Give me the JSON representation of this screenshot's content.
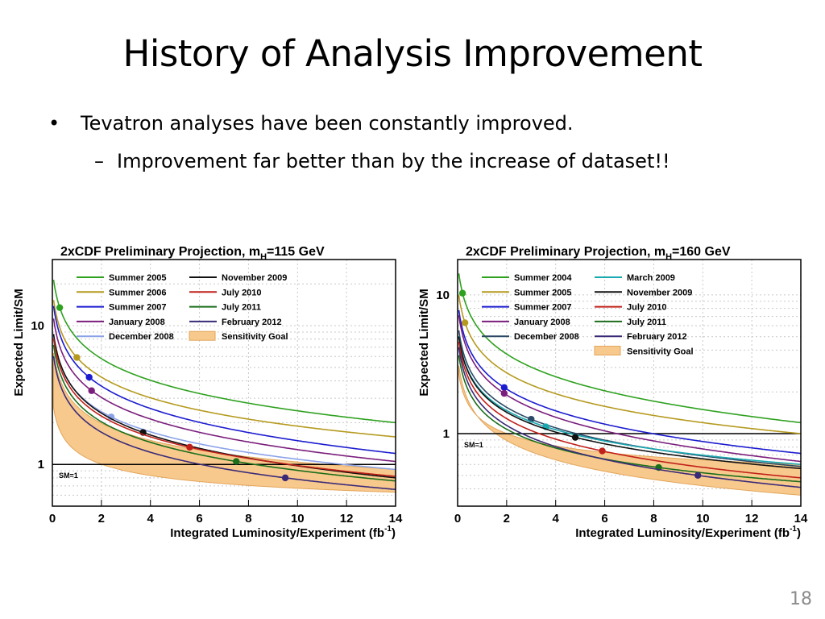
{
  "slide": {
    "title": "History of Analysis Improvement",
    "bullets": [
      {
        "mark": "•",
        "text": "Tevatron analyses have been constantly improved."
      },
      {
        "mark": "–",
        "text": "Improvement far better than by the increase of dataset!!"
      }
    ],
    "page_number": "18"
  },
  "chart_data": [
    {
      "type": "line",
      "title_pre": "2xCDF Preliminary Projection, m",
      "title_sub": "H",
      "title_post": "=115 GeV",
      "xlabel": "Integrated Luminosity/Experiment (fb",
      "xlabel_sup": "-1",
      "xlabel_end": ")",
      "ylabel": "Expected Limit/SM",
      "yscale": "log",
      "xlim": [
        0,
        14
      ],
      "ylim": [
        0.5,
        30
      ],
      "xticks": [
        "0",
        "2",
        "4",
        "6",
        "8",
        "10",
        "12",
        "14"
      ],
      "yticks": [
        {
          "v": 1,
          "label": "1"
        },
        {
          "v": 10,
          "label": "10"
        }
      ],
      "reference_line": {
        "value": 1,
        "label": "SM=1"
      },
      "legend": [
        {
          "name": "Summer 2005",
          "color": "#2ea11f"
        },
        {
          "name": "Summer 2006",
          "color": "#b59a1e"
        },
        {
          "name": "Summer 2007",
          "color": "#1b1bd0"
        },
        {
          "name": "January 2008",
          "color": "#7a1d7c"
        },
        {
          "name": "December 2008",
          "color": "#8aa2e8"
        },
        {
          "name": "November 2009",
          "color": "#111111"
        },
        {
          "name": "July 2010",
          "color": "#c0201a"
        },
        {
          "name": "July 2011",
          "color": "#1b6e1b"
        },
        {
          "name": "February 2012",
          "color": "#3a2a78"
        },
        {
          "name": "Sensitivity Goal",
          "color": "#f8c98d",
          "band": true
        }
      ],
      "series": [
        {
          "name": "Summer 2005",
          "color": "#2ea11f",
          "point": [
            0.3,
            13.5
          ],
          "at14": 2.0
        },
        {
          "name": "Summer 2006",
          "color": "#b59a1e",
          "point": [
            1.0,
            5.9
          ],
          "at14": 1.58
        },
        {
          "name": "Summer 2007",
          "color": "#1b1bd0",
          "point": [
            1.5,
            4.25
          ],
          "at14": 1.2
        },
        {
          "name": "January 2008",
          "color": "#7a1d7c",
          "point": [
            1.6,
            3.4
          ],
          "at14": 1.05
        },
        {
          "name": "December 2008",
          "color": "#8aa2e8",
          "point": [
            2.4,
            2.2
          ],
          "at14": 0.92
        },
        {
          "name": "November 2009",
          "color": "#111111",
          "point": [
            3.7,
            1.7
          ],
          "at14": 0.8
        },
        {
          "name": "July 2010",
          "color": "#c0201a",
          "point": [
            5.6,
            1.33
          ],
          "at14": 0.82
        },
        {
          "name": "July 2011",
          "color": "#1b6e1b",
          "point": [
            7.5,
            1.05
          ],
          "at14": 0.76
        },
        {
          "name": "February 2012",
          "color": "#3a2a78",
          "point": [
            9.5,
            0.8
          ],
          "at14": 0.66
        }
      ],
      "band": {
        "upper_at14": 0.92,
        "lower_at14": 0.63
      }
    },
    {
      "type": "line",
      "title_pre": "2xCDF Preliminary Projection, m",
      "title_sub": "H",
      "title_post": "=160 GeV",
      "xlabel": "Integrated Luminosity/Experiment (fb",
      "xlabel_sup": "-1",
      "xlabel_end": ")",
      "ylabel": "Expected Limit/SM",
      "yscale": "log",
      "xlim": [
        0,
        14
      ],
      "ylim": [
        0.3,
        18
      ],
      "xticks": [
        "0",
        "2",
        "4",
        "6",
        "8",
        "10",
        "12",
        "14"
      ],
      "yticks": [
        {
          "v": 1,
          "label": "1"
        },
        {
          "v": 10,
          "label": "10"
        }
      ],
      "reference_line": {
        "value": 1,
        "label": "SM=1"
      },
      "legend": [
        {
          "name": "Summer 2004",
          "color": "#2ea11f"
        },
        {
          "name": "Summer 2005",
          "color": "#b59a1e"
        },
        {
          "name": "Summer 2007",
          "color": "#1b1bd0"
        },
        {
          "name": "January 2008",
          "color": "#7a1d7c"
        },
        {
          "name": "December 2008",
          "color": "#2c4a66"
        },
        {
          "name": "March 2009",
          "color": "#1aa8b0"
        },
        {
          "name": "November 2009",
          "color": "#111111"
        },
        {
          "name": "July 2010",
          "color": "#c0201a"
        },
        {
          "name": "July 2011",
          "color": "#1b6e1b"
        },
        {
          "name": "February 2012",
          "color": "#3a2a78"
        },
        {
          "name": "Sensitivity Goal",
          "color": "#f8c98d",
          "band": true
        }
      ],
      "series": [
        {
          "name": "Summer 2004",
          "color": "#2ea11f",
          "point": [
            0.2,
            10.3
          ],
          "at14": 1.2
        },
        {
          "name": "Summer 2005",
          "color": "#b59a1e",
          "point": [
            0.3,
            6.3
          ],
          "at14": 1.0
        },
        {
          "name": "Summer 2007",
          "color": "#1b1bd0",
          "point": [
            1.9,
            2.15
          ],
          "at14": 0.72
        },
        {
          "name": "January 2008",
          "color": "#7a1d7c",
          "point": [
            1.9,
            1.95
          ],
          "at14": 0.63
        },
        {
          "name": "December 2008",
          "color": "#2c4a66",
          "point": [
            3.0,
            1.27
          ],
          "at14": 0.58
        },
        {
          "name": "March 2009",
          "color": "#1aa8b0",
          "point": [
            3.6,
            1.12
          ],
          "at14": 0.6
        },
        {
          "name": "November 2009",
          "color": "#111111",
          "point": [
            4.8,
            0.94
          ],
          "at14": 0.56
        },
        {
          "name": "July 2010",
          "color": "#c0201a",
          "point": [
            5.9,
            0.75
          ],
          "at14": 0.48
        },
        {
          "name": "July 2011",
          "color": "#1b6e1b",
          "point": [
            8.2,
            0.57
          ],
          "at14": 0.45
        },
        {
          "name": "February 2012",
          "color": "#3a2a78",
          "point": [
            9.8,
            0.5
          ],
          "at14": 0.41
        }
      ],
      "band": {
        "upper_at14": 0.6,
        "lower_at14": 0.36
      }
    }
  ]
}
